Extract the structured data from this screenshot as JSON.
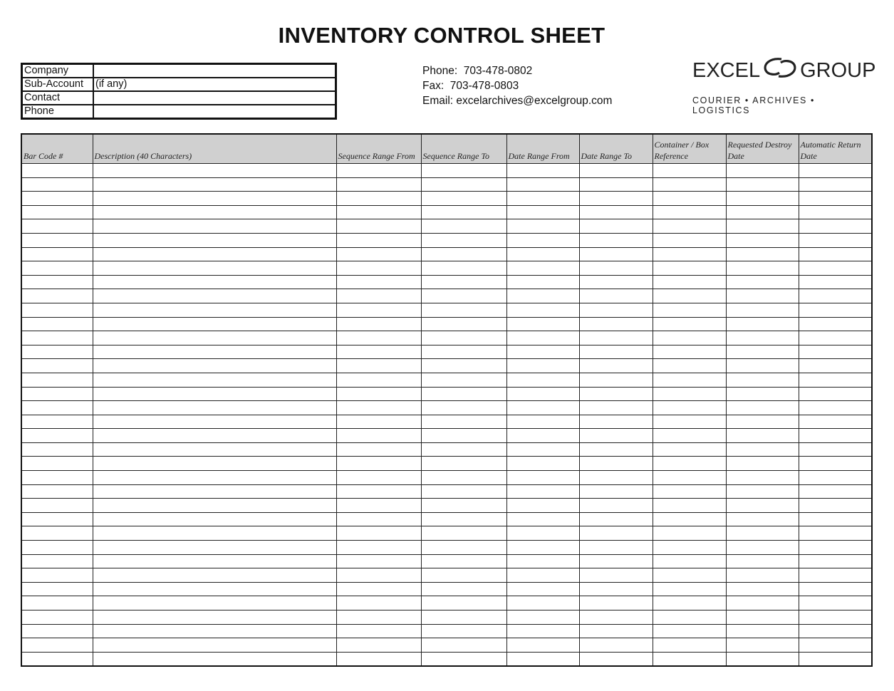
{
  "title": "INVENTORY CONTROL SHEET",
  "client_info": [
    {
      "label": "Company",
      "value": ""
    },
    {
      "label": "Sub-Account",
      "value": "(if any)"
    },
    {
      "label": "Contact",
      "value": ""
    },
    {
      "label": "Phone",
      "value": ""
    }
  ],
  "contact": {
    "phone": "Phone:  703-478-0802",
    "fax": "Fax:  703-478-0803",
    "email": "Email: excelarchives@excelgroup.com"
  },
  "logo": {
    "left_word": "EXCEL",
    "right_word": "GROUP",
    "tagline": "COURIER • ARCHIVES • LOGISTICS"
  },
  "table": {
    "columns": [
      "Bar Code #",
      "Description (40 Characters)",
      "Sequence Range From",
      "Sequence Range To",
      "Date Range From",
      "Date Range To",
      "Container / Box Reference",
      "Requested Destroy Date",
      "Automatic Return Date"
    ]
  }
}
